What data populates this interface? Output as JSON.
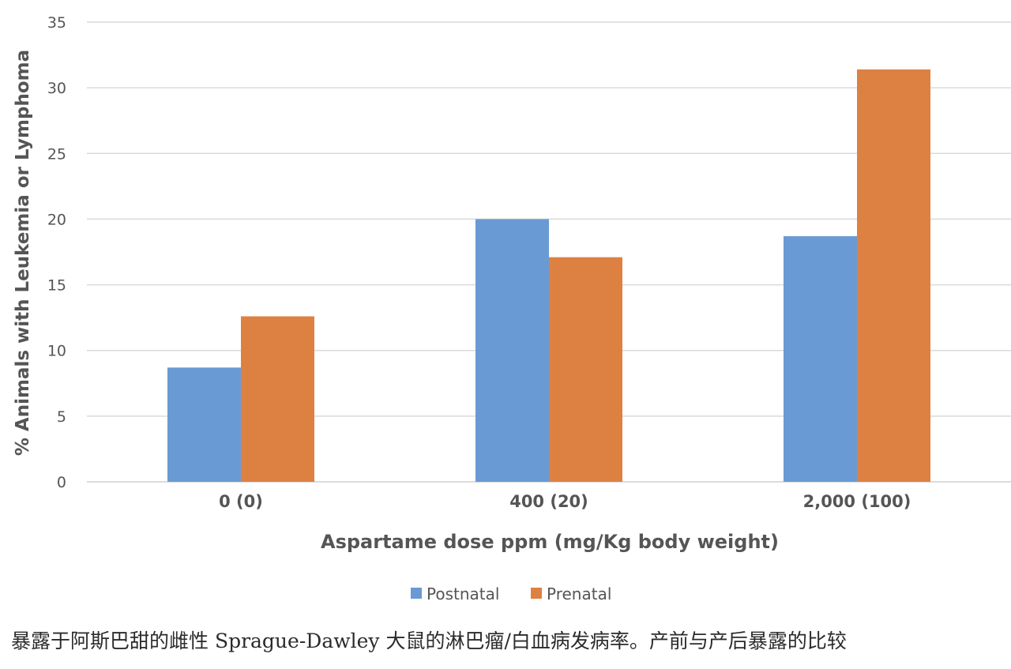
{
  "chart_data": {
    "type": "bar",
    "categories": [
      "0 (0)",
      "400 (20)",
      "2,000 (100)"
    ],
    "series": [
      {
        "name": "Postnatal",
        "color": "#6a9ad3",
        "values": [
          8.7,
          20.0,
          18.7
        ]
      },
      {
        "name": "Prenatal",
        "color": "#dd8143",
        "values": [
          12.6,
          17.1,
          31.4
        ]
      }
    ],
    "title": "",
    "xlabel": "Aspartame dose ppm (mg/Kg body weight)",
    "ylabel": "% Animals with Leukemia or Lymphoma",
    "ylim": [
      0,
      35
    ],
    "yticks": [
      0,
      5,
      10,
      15,
      20,
      25,
      30,
      35
    ],
    "grid": true,
    "legend_position": "bottom"
  },
  "caption": "暴露于阿斯巴甜的雌性 Sprague-Dawley 大鼠的淋巴瘤/白血病发病率。产前与产后暴露的比较"
}
